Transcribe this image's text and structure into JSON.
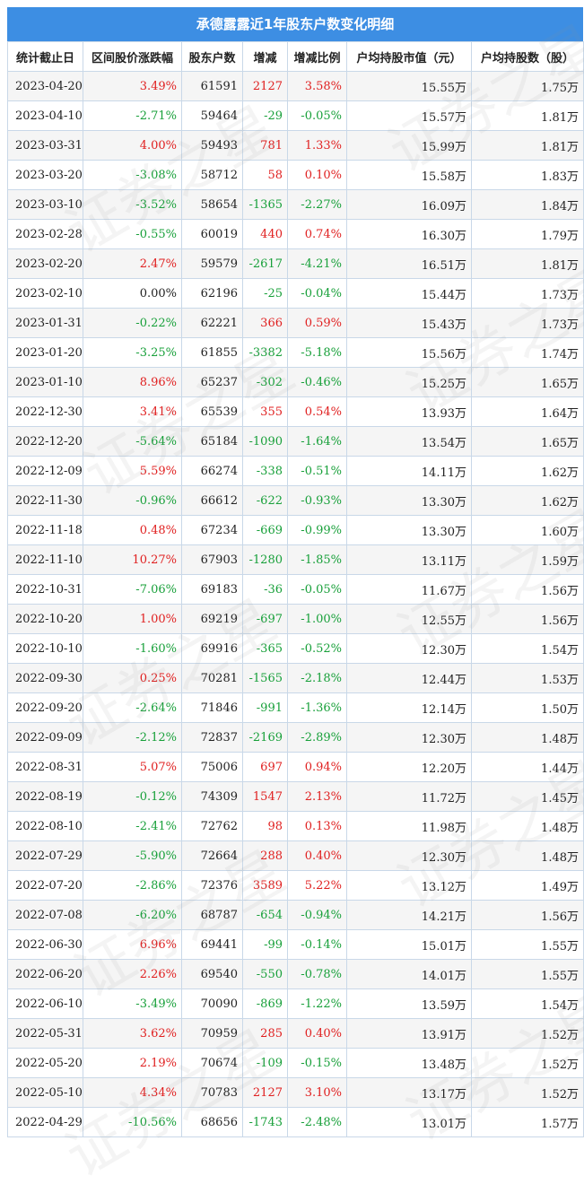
{
  "title": "承德露露近1年股东户数变化明细",
  "headers": [
    "统计截止日",
    "区间股价涨跌幅",
    "股东户数",
    "增减",
    "增减比例",
    "户均持股市值（元）",
    "户均持股数（股）"
  ],
  "rows": [
    [
      "2023-04-20",
      "3.49%",
      "61591",
      "2127",
      "3.58%",
      "15.55万",
      "1.75万"
    ],
    [
      "2023-04-10",
      "-2.71%",
      "59464",
      "-29",
      "-0.05%",
      "15.57万",
      "1.81万"
    ],
    [
      "2023-03-31",
      "4.00%",
      "59493",
      "781",
      "1.33%",
      "15.99万",
      "1.81万"
    ],
    [
      "2023-03-20",
      "-3.08%",
      "58712",
      "58",
      "0.10%",
      "15.58万",
      "1.83万"
    ],
    [
      "2023-03-10",
      "-3.52%",
      "58654",
      "-1365",
      "-2.27%",
      "16.09万",
      "1.84万"
    ],
    [
      "2023-02-28",
      "-0.55%",
      "60019",
      "440",
      "0.74%",
      "16.30万",
      "1.79万"
    ],
    [
      "2023-02-20",
      "2.47%",
      "59579",
      "-2617",
      "-4.21%",
      "16.51万",
      "1.81万"
    ],
    [
      "2023-02-10",
      "0.00%",
      "62196",
      "-25",
      "-0.04%",
      "15.44万",
      "1.73万"
    ],
    [
      "2023-01-31",
      "-0.22%",
      "62221",
      "366",
      "0.59%",
      "15.43万",
      "1.73万"
    ],
    [
      "2023-01-20",
      "-3.25%",
      "61855",
      "-3382",
      "-5.18%",
      "15.56万",
      "1.74万"
    ],
    [
      "2023-01-10",
      "8.96%",
      "65237",
      "-302",
      "-0.46%",
      "15.25万",
      "1.65万"
    ],
    [
      "2022-12-30",
      "3.41%",
      "65539",
      "355",
      "0.54%",
      "13.93万",
      "1.64万"
    ],
    [
      "2022-12-20",
      "-5.64%",
      "65184",
      "-1090",
      "-1.64%",
      "13.54万",
      "1.65万"
    ],
    [
      "2022-12-09",
      "5.59%",
      "66274",
      "-338",
      "-0.51%",
      "14.11万",
      "1.62万"
    ],
    [
      "2022-11-30",
      "-0.96%",
      "66612",
      "-622",
      "-0.93%",
      "13.30万",
      "1.62万"
    ],
    [
      "2022-11-18",
      "0.48%",
      "67234",
      "-669",
      "-0.99%",
      "13.30万",
      "1.60万"
    ],
    [
      "2022-11-10",
      "10.27%",
      "67903",
      "-1280",
      "-1.85%",
      "13.11万",
      "1.59万"
    ],
    [
      "2022-10-31",
      "-7.06%",
      "69183",
      "-36",
      "-0.05%",
      "11.67万",
      "1.56万"
    ],
    [
      "2022-10-20",
      "1.00%",
      "69219",
      "-697",
      "-1.00%",
      "12.55万",
      "1.56万"
    ],
    [
      "2022-10-10",
      "-1.60%",
      "69916",
      "-365",
      "-0.52%",
      "12.30万",
      "1.54万"
    ],
    [
      "2022-09-30",
      "0.25%",
      "70281",
      "-1565",
      "-2.18%",
      "12.44万",
      "1.53万"
    ],
    [
      "2022-09-20",
      "-2.64%",
      "71846",
      "-991",
      "-1.36%",
      "12.14万",
      "1.50万"
    ],
    [
      "2022-09-09",
      "-2.12%",
      "72837",
      "-2169",
      "-2.89%",
      "12.30万",
      "1.48万"
    ],
    [
      "2022-08-31",
      "5.07%",
      "75006",
      "697",
      "0.94%",
      "12.20万",
      "1.44万"
    ],
    [
      "2022-08-19",
      "-0.12%",
      "74309",
      "1547",
      "2.13%",
      "11.72万",
      "1.45万"
    ],
    [
      "2022-08-10",
      "-2.41%",
      "72762",
      "98",
      "0.13%",
      "11.98万",
      "1.48万"
    ],
    [
      "2022-07-29",
      "-5.90%",
      "72664",
      "288",
      "0.40%",
      "12.30万",
      "1.48万"
    ],
    [
      "2022-07-20",
      "-2.86%",
      "72376",
      "3589",
      "5.22%",
      "13.12万",
      "1.49万"
    ],
    [
      "2022-07-08",
      "-6.20%",
      "68787",
      "-654",
      "-0.94%",
      "14.21万",
      "1.56万"
    ],
    [
      "2022-06-30",
      "6.96%",
      "69441",
      "-99",
      "-0.14%",
      "15.01万",
      "1.55万"
    ],
    [
      "2022-06-20",
      "2.26%",
      "69540",
      "-550",
      "-0.78%",
      "14.01万",
      "1.55万"
    ],
    [
      "2022-06-10",
      "-3.49%",
      "70090",
      "-869",
      "-1.22%",
      "13.59万",
      "1.54万"
    ],
    [
      "2022-05-31",
      "3.62%",
      "70959",
      "285",
      "0.40%",
      "13.91万",
      "1.52万"
    ],
    [
      "2022-05-20",
      "2.19%",
      "70674",
      "-109",
      "-0.15%",
      "13.48万",
      "1.52万"
    ],
    [
      "2022-05-10",
      "4.34%",
      "70783",
      "2127",
      "3.10%",
      "13.17万",
      "1.52万"
    ],
    [
      "2022-04-29",
      "-10.56%",
      "68656",
      "-1743",
      "-2.48%",
      "13.01万",
      "1.57万"
    ]
  ],
  "watermark": "证券之星",
  "colors": {
    "header_bg": "#3d8ee3",
    "positive": "#e02020",
    "negative": "#18a03a"
  }
}
